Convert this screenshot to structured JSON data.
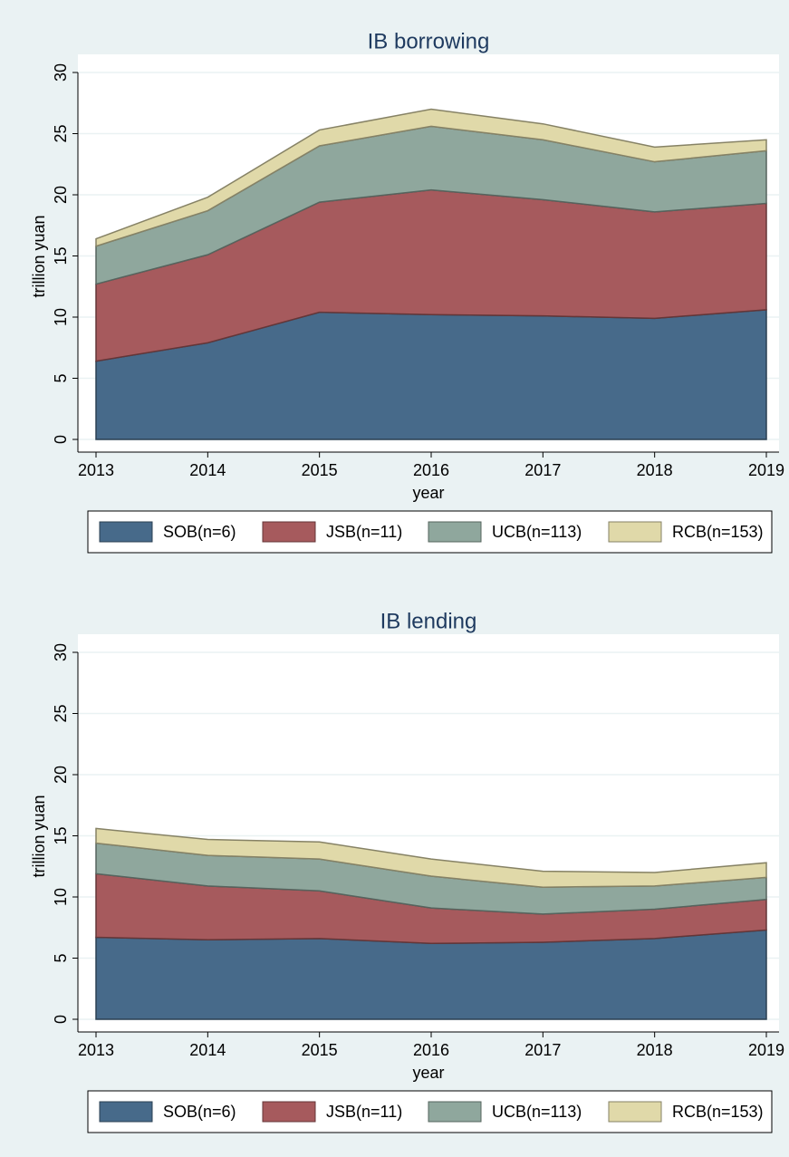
{
  "chart_data": [
    {
      "type": "stacked_area",
      "title": "IB borrowing",
      "x_label": "year",
      "y_label": "trillion yuan",
      "x": [
        2013,
        2014,
        2015,
        2016,
        2017,
        2018,
        2019
      ],
      "xlim": [
        2013,
        2019
      ],
      "xticks": [
        2013,
        2014,
        2015,
        2016,
        2017,
        2018,
        2019
      ],
      "ylim": [
        0,
        30
      ],
      "yticks": [
        0,
        5,
        10,
        15,
        20,
        25,
        30
      ],
      "grid": true,
      "legend": "bottom",
      "series": [
        {
          "name": "SOB(n=6)",
          "color": "#476a8a",
          "values": [
            6.4,
            7.9,
            10.4,
            10.2,
            10.1,
            9.9,
            10.6
          ]
        },
        {
          "name": "JSB(n=11)",
          "color": "#a65a5d",
          "values": [
            6.3,
            7.2,
            9.0,
            10.2,
            9.5,
            8.7,
            8.7
          ]
        },
        {
          "name": "UCB(n=113)",
          "color": "#8fa79d",
          "values": [
            3.1,
            3.6,
            4.6,
            5.2,
            4.9,
            4.1,
            4.3
          ]
        },
        {
          "name": "RCB(n=153)",
          "color": "#e0d9a9",
          "values": [
            0.6,
            1.1,
            1.3,
            1.4,
            1.3,
            1.2,
            0.9
          ]
        }
      ]
    },
    {
      "type": "stacked_area",
      "title": "IB lending",
      "x_label": "year",
      "y_label": "trillion yuan",
      "x": [
        2013,
        2014,
        2015,
        2016,
        2017,
        2018,
        2019
      ],
      "xlim": [
        2013,
        2019
      ],
      "xticks": [
        2013,
        2014,
        2015,
        2016,
        2017,
        2018,
        2019
      ],
      "ylim": [
        0,
        30
      ],
      "yticks": [
        0,
        5,
        10,
        15,
        20,
        25,
        30
      ],
      "grid": true,
      "legend": "bottom",
      "series": [
        {
          "name": "SOB(n=6)",
          "color": "#476a8a",
          "values": [
            6.7,
            6.5,
            6.6,
            6.2,
            6.3,
            6.6,
            7.3
          ]
        },
        {
          "name": "JSB(n=11)",
          "color": "#a65a5d",
          "values": [
            5.2,
            4.4,
            3.9,
            2.9,
            2.3,
            2.4,
            2.5
          ]
        },
        {
          "name": "UCB(n=113)",
          "color": "#8fa79d",
          "values": [
            2.5,
            2.5,
            2.6,
            2.6,
            2.2,
            1.9,
            1.8
          ]
        },
        {
          "name": "RCB(n=153)",
          "color": "#e0d9a9",
          "values": [
            1.2,
            1.3,
            1.4,
            1.4,
            1.3,
            1.1,
            1.2
          ]
        }
      ]
    }
  ]
}
